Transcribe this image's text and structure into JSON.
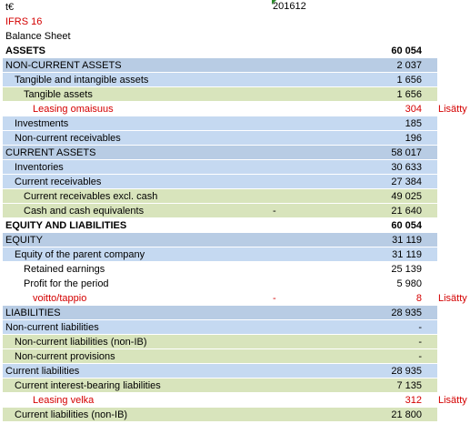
{
  "header": {
    "currency": "t€",
    "period": "201612",
    "standard": "IFRS 16",
    "statement": "Balance Sheet"
  },
  "rows": [
    {
      "label": "ASSETS",
      "value": "60 054",
      "bold": true,
      "style": "none",
      "indent": 0
    },
    {
      "label": "NON-CURRENT ASSETS",
      "value": "2 037",
      "style": "blue-dark",
      "indent": 0
    },
    {
      "label": "Tangible and intangible assets",
      "value": "1 656",
      "style": "blue",
      "indent": 1
    },
    {
      "label": "Tangible assets",
      "value": "1 656",
      "style": "green",
      "indent": 2
    },
    {
      "label": "Leasing omaisuus",
      "value": "304",
      "style": "none",
      "indent": 3,
      "red": true,
      "note": "Lisätty"
    },
    {
      "label": "Investments",
      "value": "185",
      "style": "blue",
      "indent": 1
    },
    {
      "label": "Non-current receivables",
      "value": "196",
      "style": "blue",
      "indent": 1
    },
    {
      "label": "CURRENT ASSETS",
      "value": "58 017",
      "style": "blue-dark",
      "indent": 0
    },
    {
      "label": "Inventories",
      "value": "30 633",
      "style": "blue",
      "indent": 1
    },
    {
      "label": "Current receivables",
      "value": "27 384",
      "style": "blue",
      "indent": 1
    },
    {
      "label": "Current receivables excl. cash",
      "value": "49 025",
      "style": "green",
      "indent": 2
    },
    {
      "label": "Cash and cash equivalents",
      "value": "21 640",
      "style": "green",
      "indent": 2,
      "dash": "-"
    },
    {
      "label": "EQUITY AND LIABILITIES",
      "value": "60 054",
      "bold": true,
      "style": "none",
      "indent": 0
    },
    {
      "label": "EQUITY",
      "value": "31 119",
      "style": "blue-dark",
      "indent": 0
    },
    {
      "label": "Equity of the parent company",
      "value": "31 119",
      "style": "blue",
      "indent": 1
    },
    {
      "label": "Retained earnings",
      "value": "25 139",
      "style": "none",
      "indent": 2
    },
    {
      "label": "Profit for the period",
      "value": "5 980",
      "style": "none",
      "indent": 2
    },
    {
      "label": "voitto/tappio",
      "value": "8",
      "style": "none",
      "indent": 3,
      "red": true,
      "dash": "-",
      "note": "Lisätty"
    },
    {
      "label": "LIABILITIES",
      "value": "28 935",
      "style": "blue-dark",
      "indent": 0
    },
    {
      "label": "Non-current liabilities",
      "value": "-",
      "style": "blue",
      "indent": 0
    },
    {
      "label": "Non-current liabilities (non-IB)",
      "value": "-",
      "style": "green",
      "indent": 1
    },
    {
      "label": "Non-current provisions",
      "value": "-",
      "style": "green",
      "indent": 1
    },
    {
      "label": "Current liabilities",
      "value": "28 935",
      "style": "blue",
      "indent": 0
    },
    {
      "label": "Current interest-bearing liabilities",
      "value": "7 135",
      "style": "green",
      "indent": 1
    },
    {
      "label": "Leasing velka",
      "value": "312",
      "style": "none",
      "indent": 3,
      "red": true,
      "note": "Lisätty"
    },
    {
      "label": "Current liabilities (non-IB)",
      "value": "21 800",
      "style": "green",
      "indent": 1
    }
  ]
}
